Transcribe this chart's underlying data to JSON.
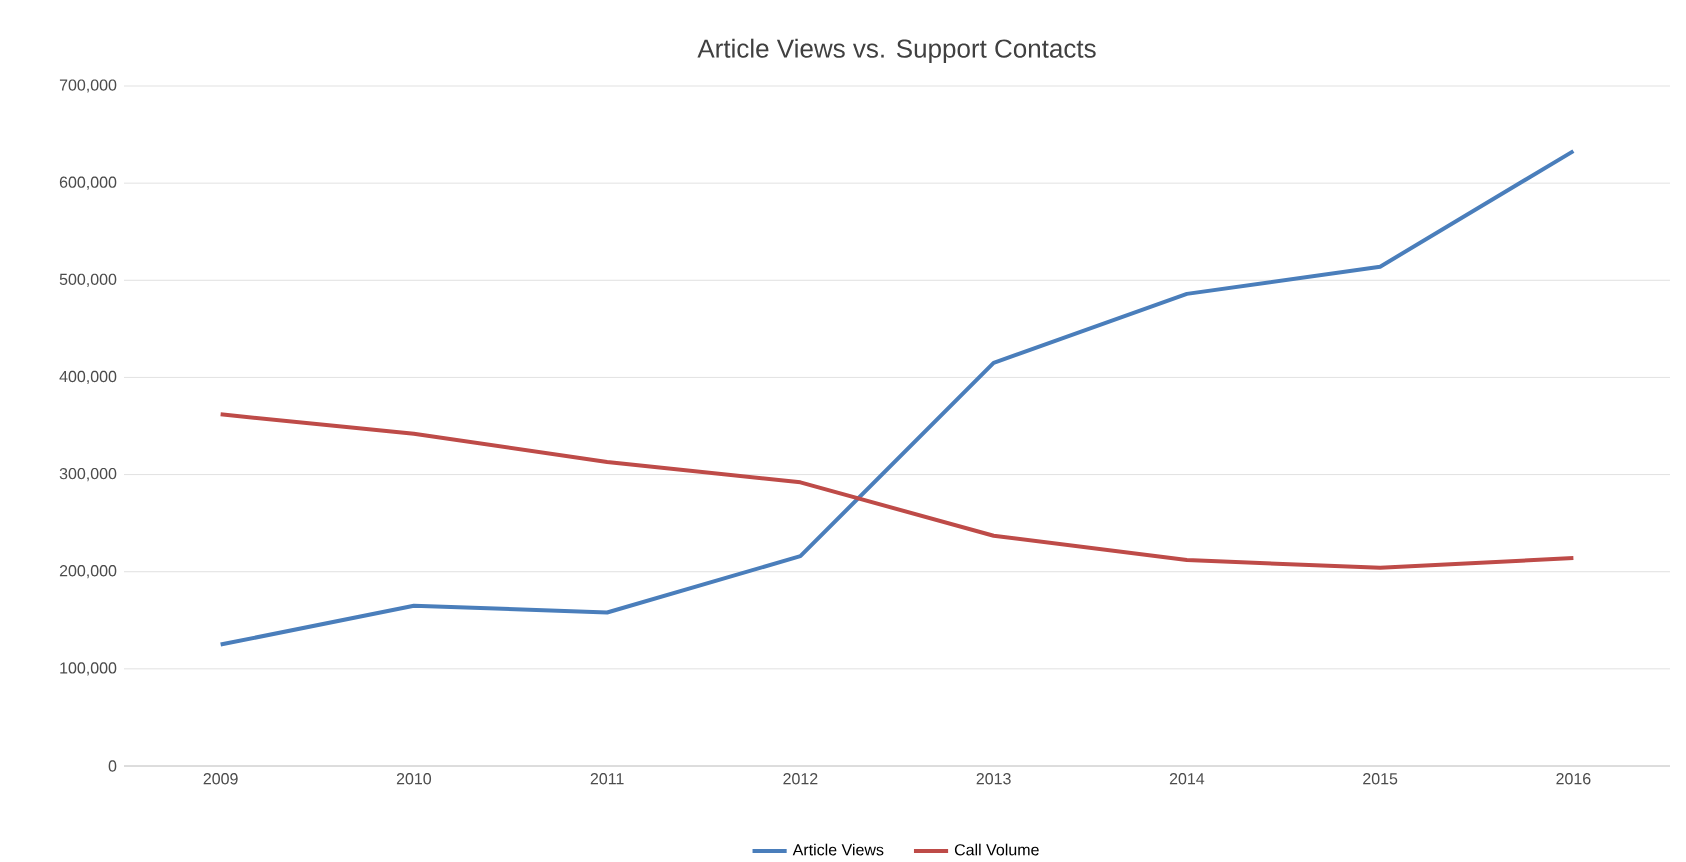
{
  "chart_data": {
    "type": "line",
    "title": "Article Views vs. Support Contacts",
    "categories": [
      "2009",
      "2010",
      "2011",
      "2012",
      "2013",
      "2014",
      "2015",
      "2016"
    ],
    "series": [
      {
        "name": "Article Views",
        "color": "#4a7ebb",
        "values": [
          125000,
          165000,
          158000,
          216000,
          415000,
          486000,
          514000,
          633000
        ]
      },
      {
        "name": "Call Volume",
        "color": "#be4b48",
        "values": [
          362000,
          342000,
          313000,
          292000,
          237000,
          212000,
          204000,
          214000
        ]
      }
    ],
    "ylim": [
      0,
      700000
    ],
    "yticks": [
      0,
      {
        "value": 100000,
        "label": "100,000"
      },
      {
        "value": 200000,
        "label": "200,000"
      },
      {
        "value": 300000,
        "label": "300,000"
      },
      {
        "value": 400000,
        "label": "400,000"
      },
      {
        "value": 500000,
        "label": "500,000"
      },
      {
        "value": 600000,
        "label": "600,000"
      },
      {
        "value": 700000,
        "label": "700,000"
      }
    ],
    "grid": "y",
    "legend": "bottom",
    "marker": "none",
    "line_style": "solid"
  }
}
